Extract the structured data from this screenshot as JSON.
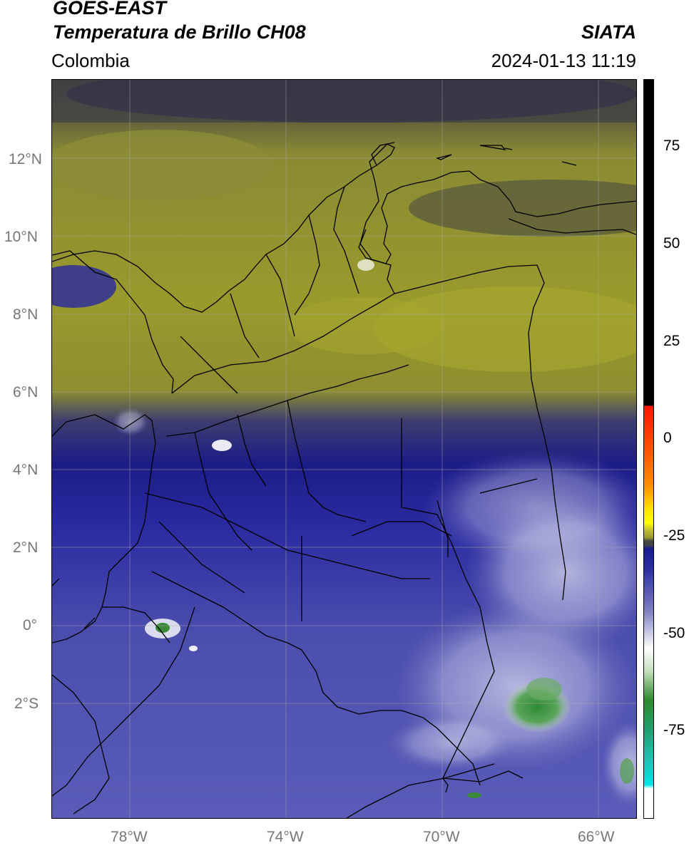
{
  "header": {
    "satellite": "GOES-EAST",
    "product": "Temperatura de Brillo CH08",
    "region": "Colombia",
    "org": "SIATA",
    "datetime": "2024-01-13 11:19"
  },
  "map": {
    "lat_ticks": [
      "12°N",
      "10°N",
      "8°N",
      "6°N",
      "4°N",
      "2°N",
      "0°",
      "2°S"
    ],
    "lon_ticks": [
      "78°W",
      "74°W",
      "70°W",
      "66°W"
    ],
    "lat_range": [
      -5,
      14
    ],
    "lon_range": [
      -80,
      -65
    ]
  },
  "colorbar": {
    "ticks": [
      "75",
      "50",
      "25",
      "0",
      "-25",
      "-50",
      "-75"
    ],
    "range": [
      -95,
      90
    ],
    "colors": {
      "warm_black": "#000000",
      "red": "#ff1500",
      "orange": "#ff8000",
      "yellow": "#ffff00",
      "olive": "#9a9a2a",
      "dark_gray": "#444444",
      "navy": "#1a1a90",
      "blue_gray": "#7e80c0",
      "white": "#ffffff",
      "green": "#2d8a2d",
      "teal": "#20b0a0",
      "cyan": "#00e6e6"
    }
  }
}
